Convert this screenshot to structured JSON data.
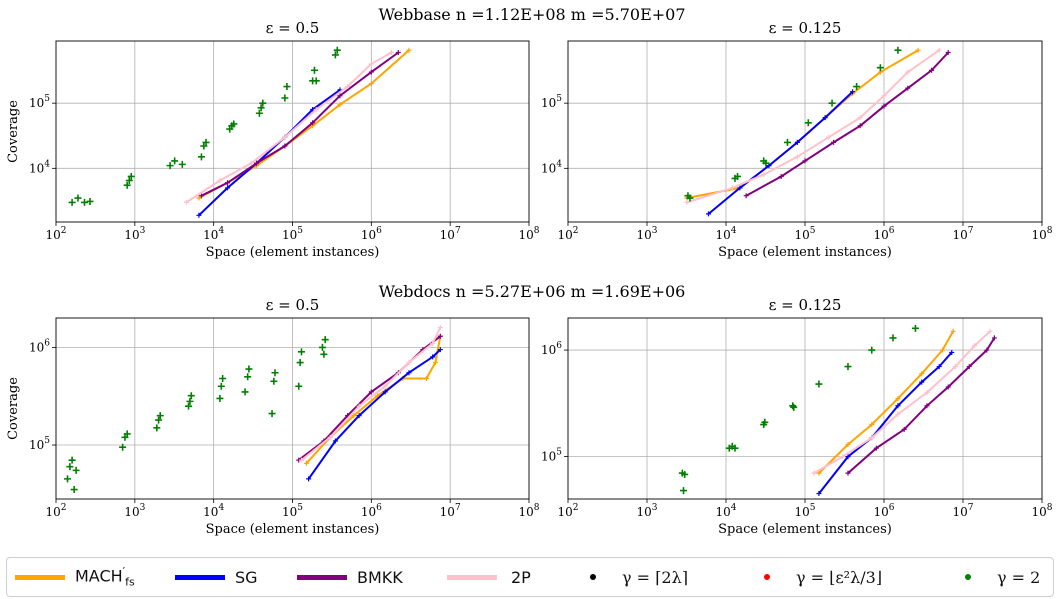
{
  "chart_data": [
    {
      "type": "scatter",
      "group_title": "Webbase n =1.12E+08 m =5.70E+07",
      "title": "ε = 0.5",
      "xlabel": "Space (element instances)",
      "ylabel": "Coverage",
      "xscale": "log",
      "yscale": "log",
      "xlim": [
        100,
        100000000
      ],
      "ylim": [
        1500,
        900000
      ],
      "xticks": [
        [
          "10^2",
          100
        ],
        [
          "10^3",
          1000
        ],
        [
          "10^4",
          10000
        ],
        [
          "10^5",
          100000
        ],
        [
          "10^6",
          1000000
        ],
        [
          "10^7",
          10000000
        ],
        [
          "10^8",
          100000000
        ]
      ],
      "yticks": [
        [
          "10^4",
          10000
        ],
        [
          "10^5",
          100000
        ]
      ],
      "grid": true,
      "series": [
        {
          "name": "MACH′fs",
          "color": "#FFA500",
          "x": [
            6500,
            15000,
            35000,
            80000,
            180000,
            400000,
            1000000,
            3000000
          ],
          "y": [
            3500,
            6000,
            11000,
            22000,
            45000,
            95000,
            200000,
            650000
          ]
        },
        {
          "name": "SG",
          "color": "#0000FF",
          "x": [
            6500,
            15000,
            35000,
            80000,
            180000,
            400000
          ],
          "y": [
            1900,
            5000,
            12000,
            30000,
            80000,
            160000
          ]
        },
        {
          "name": "BMKK",
          "color": "#800080",
          "x": [
            7000,
            15000,
            35000,
            80000,
            180000,
            400000,
            1000000,
            2200000
          ],
          "y": [
            3800,
            6000,
            12000,
            22000,
            50000,
            130000,
            300000,
            600000
          ]
        },
        {
          "name": "2P",
          "color": "#FFC0CB",
          "x": [
            4500,
            12000,
            30000,
            80000,
            200000,
            500000,
            1000000,
            1800000
          ],
          "y": [
            3000,
            6500,
            12000,
            30000,
            80000,
            180000,
            400000,
            600000
          ]
        },
        {
          "name": "γ = 2",
          "color": "#008000",
          "marker": "plus",
          "x": [
            160,
            190,
            230,
            270,
            800,
            850,
            900,
            2800,
            3200,
            4000,
            7000,
            7500,
            8000,
            16000,
            17000,
            18000,
            38000,
            40000,
            42000,
            80000,
            85000,
            180000,
            190000,
            200000,
            350000,
            370000
          ],
          "y": [
            3000,
            3500,
            3000,
            3100,
            5500,
            6500,
            7500,
            11000,
            13000,
            11500,
            15000,
            22000,
            25000,
            40000,
            45000,
            48000,
            70000,
            85000,
            100000,
            120000,
            180000,
            220000,
            320000,
            220000,
            550000,
            650000
          ]
        }
      ]
    },
    {
      "type": "scatter",
      "title": "ε = 0.125",
      "xlabel": "Space (element instances)",
      "xscale": "log",
      "yscale": "log",
      "xlim": [
        100,
        100000000
      ],
      "ylim": [
        1500,
        900000
      ],
      "xticks": [
        [
          "10^2",
          100
        ],
        [
          "10^3",
          1000
        ],
        [
          "10^4",
          10000
        ],
        [
          "10^5",
          100000
        ],
        [
          "10^6",
          1000000
        ],
        [
          "10^7",
          10000000
        ],
        [
          "10^8",
          100000000
        ]
      ],
      "yticks": [
        [
          "10^4",
          10000
        ],
        [
          "10^5",
          100000
        ]
      ],
      "grid": true,
      "series": [
        {
          "name": "MACH′fs",
          "color": "#FFA500",
          "x": [
            3200,
            15000,
            35000,
            80000,
            180000,
            400000,
            900000,
            2700000
          ],
          "y": [
            3500,
            5000,
            11000,
            25000,
            60000,
            140000,
            300000,
            650000
          ]
        },
        {
          "name": "SG",
          "color": "#0000FF",
          "x": [
            6000,
            15000,
            35000,
            80000,
            180000,
            400000
          ],
          "y": [
            2000,
            5000,
            11000,
            25000,
            60000,
            150000
          ]
        },
        {
          "name": "BMKK",
          "color": "#800080",
          "x": [
            18000,
            50000,
            100000,
            230000,
            500000,
            1000000,
            2000000,
            4000000,
            6500000
          ],
          "y": [
            3800,
            7500,
            13000,
            25000,
            45000,
            90000,
            170000,
            320000,
            600000
          ]
        },
        {
          "name": "2P",
          "color": "#FFC0CB",
          "x": [
            3200,
            12000,
            30000,
            80000,
            200000,
            500000,
            1000000,
            2000000,
            5000000
          ],
          "y": [
            3000,
            5000,
            8000,
            15000,
            30000,
            60000,
            130000,
            300000,
            650000
          ]
        },
        {
          "name": "γ = 2",
          "color": "#008000",
          "marker": "plus",
          "x": [
            3300,
            3500,
            13000,
            14000,
            30000,
            32000,
            60000,
            110000,
            220000,
            450000,
            900000,
            1500000
          ],
          "y": [
            3800,
            3500,
            7000,
            7500,
            13000,
            12000,
            25000,
            50000,
            100000,
            180000,
            350000,
            650000
          ]
        }
      ]
    },
    {
      "type": "scatter",
      "group_title": "Webdocs n =5.27E+06 m =1.69E+06",
      "title": "ε = 0.5",
      "xlabel": "Space (element instances)",
      "ylabel": "Coverage",
      "xscale": "log",
      "yscale": "log",
      "xlim": [
        100,
        100000000
      ],
      "ylim": [
        28000,
        2000000
      ],
      "xticks": [
        [
          "10^2",
          100
        ],
        [
          "10^3",
          1000
        ],
        [
          "10^4",
          10000
        ],
        [
          "10^5",
          100000
        ],
        [
          "10^6",
          1000000
        ],
        [
          "10^7",
          10000000
        ],
        [
          "10^8",
          100000000
        ]
      ],
      "yticks": [
        [
          "10^5",
          100000
        ],
        [
          "10^6",
          1000000
        ]
      ],
      "grid": true,
      "series": [
        {
          "name": "MACH′fs",
          "color": "#FFA500",
          "x": [
            150000,
            300000,
            600000,
            1200000,
            2500000,
            5000000,
            6500000,
            7500000
          ],
          "y": [
            65000,
            120000,
            200000,
            320000,
            480000,
            480000,
            700000,
            1300000
          ]
        },
        {
          "name": "SG",
          "color": "#0000FF",
          "x": [
            160000,
            350000,
            700000,
            1500000,
            3000000,
            6000000,
            7500000
          ],
          "y": [
            45000,
            110000,
            200000,
            350000,
            550000,
            800000,
            950000
          ]
        },
        {
          "name": "BMKK",
          "color": "#800080",
          "x": [
            120000,
            250000,
            500000,
            1000000,
            2200000,
            4500000,
            7500000
          ],
          "y": [
            70000,
            110000,
            200000,
            350000,
            550000,
            950000,
            1300000
          ]
        },
        {
          "name": "2P",
          "color": "#FFC0CB",
          "x": [
            130000,
            300000,
            700000,
            1500000,
            3000000,
            6000000,
            7500000
          ],
          "y": [
            70000,
            120000,
            250000,
            400000,
            700000,
            1100000,
            1600000
          ]
        },
        {
          "name": "γ = 2",
          "color": "#008000",
          "marker": "plus",
          "x": [
            140,
            150,
            160,
            170,
            180,
            700,
            750,
            800,
            1900,
            2000,
            2100,
            4800,
            5000,
            5200,
            12000,
            12500,
            13000,
            25000,
            27000,
            28000,
            55000,
            58000,
            60000,
            120000,
            125000,
            130000,
            240000,
            250000,
            260000
          ],
          "y": [
            45000,
            60000,
            70000,
            35000,
            55000,
            95000,
            120000,
            130000,
            150000,
            180000,
            200000,
            250000,
            280000,
            320000,
            300000,
            400000,
            480000,
            350000,
            500000,
            600000,
            210000,
            450000,
            550000,
            400000,
            700000,
            900000,
            1000000,
            850000,
            1200000
          ]
        }
      ]
    },
    {
      "type": "scatter",
      "title": "ε = 0.125",
      "xlabel": "Space (element instances)",
      "xscale": "log",
      "yscale": "log",
      "xlim": [
        100,
        100000000
      ],
      "ylim": [
        40000,
        2000000
      ],
      "xticks": [
        [
          "10^2",
          100
        ],
        [
          "10^3",
          1000
        ],
        [
          "10^4",
          10000
        ],
        [
          "10^5",
          100000
        ],
        [
          "10^6",
          1000000
        ],
        [
          "10^7",
          10000000
        ],
        [
          "10^8",
          100000000
        ]
      ],
      "yticks": [
        [
          "10^5",
          100000
        ],
        [
          "10^6",
          1000000
        ]
      ],
      "grid": true,
      "series": [
        {
          "name": "MACH′fs",
          "color": "#FFA500",
          "x": [
            150000,
            350000,
            700000,
            1500000,
            3000000,
            5500000,
            7500000
          ],
          "y": [
            70000,
            130000,
            200000,
            350000,
            600000,
            1000000,
            1500000
          ]
        },
        {
          "name": "SG",
          "color": "#0000FF",
          "x": [
            150000,
            350000,
            700000,
            1500000,
            3000000,
            5000000,
            7200000
          ],
          "y": [
            45000,
            100000,
            150000,
            300000,
            500000,
            700000,
            950000
          ]
        },
        {
          "name": "BMKK",
          "color": "#800080",
          "x": [
            350000,
            800000,
            1800000,
            3500000,
            6500000,
            12000000,
            20000000,
            25000000
          ],
          "y": [
            70000,
            120000,
            180000,
            300000,
            450000,
            700000,
            1000000,
            1300000
          ]
        },
        {
          "name": "2P",
          "color": "#FFC0CB",
          "x": [
            130000,
            300000,
            700000,
            1500000,
            3500000,
            8000000,
            14000000,
            22000000
          ],
          "y": [
            70000,
            100000,
            150000,
            250000,
            400000,
            700000,
            1100000,
            1500000
          ]
        },
        {
          "name": "γ = 2",
          "color": "#008000",
          "marker": "plus",
          "x": [
            2800,
            2900,
            3000,
            11000,
            12000,
            13000,
            30000,
            31000,
            70000,
            72000,
            150000,
            350000,
            700000,
            1300000,
            2500000
          ],
          "y": [
            70000,
            48000,
            68000,
            120000,
            125000,
            120000,
            200000,
            210000,
            300000,
            290000,
            480000,
            700000,
            1000000,
            1300000,
            1600000
          ]
        }
      ]
    }
  ],
  "legend": {
    "items": [
      {
        "label_main": "MACH",
        "label_sup": "′",
        "label_sub": "fs",
        "color": "#FFA500",
        "kind": "line"
      },
      {
        "label": "SG",
        "color": "#0000FF",
        "kind": "line"
      },
      {
        "label": "BMKK",
        "color": "#800080",
        "kind": "line"
      },
      {
        "label": "2P",
        "color": "#FFC0CB",
        "kind": "line"
      },
      {
        "label": "γ = ⌈2λ⌉",
        "color": "#000000",
        "kind": "dot"
      },
      {
        "label": "γ = ⌊ε²λ/3⌋",
        "color": "#FF0000",
        "kind": "dot"
      },
      {
        "label": "γ = 2",
        "color": "#008000",
        "kind": "dot"
      }
    ]
  }
}
